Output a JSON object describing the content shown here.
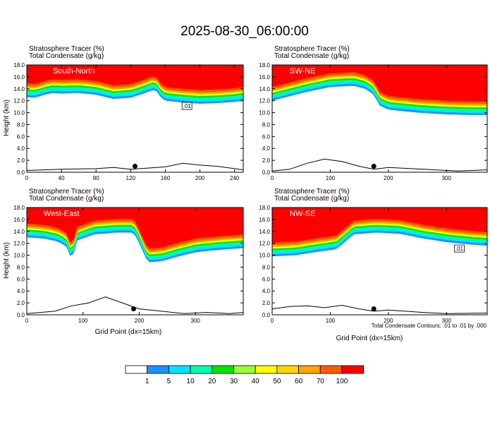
{
  "figure": {
    "title": "2025-08-30_06:00:00",
    "footnote": "Total Condensate Contours: .01 to .01 by .000",
    "contour_label": ".01",
    "xlabel": "Grid Point (dx=15km)"
  },
  "colors": {
    "levels": [
      {
        "label": "",
        "color": "#ffffff"
      },
      {
        "label": "1",
        "color": "#1e90ff"
      },
      {
        "label": "5",
        "color": "#00e5ff"
      },
      {
        "label": "10",
        "color": "#00ffaa"
      },
      {
        "label": "20",
        "color": "#00e600"
      },
      {
        "label": "30",
        "color": "#99ff33"
      },
      {
        "label": "40",
        "color": "#ffff00"
      },
      {
        "label": "50",
        "color": "#ffd700"
      },
      {
        "label": "60",
        "color": "#ffa500"
      },
      {
        "label": "70",
        "color": "#ff5a00"
      },
      {
        "label": "100",
        "color": "#ff0000"
      }
    ]
  },
  "chart_data": [
    {
      "type": "heatmap",
      "title": "South-North",
      "subtitle_1": "Stratosphere Tracer   (%)",
      "subtitle_2": "Total Condensate   (g/kg)",
      "ylabel": "Height (km)",
      "xlabel": "",
      "xlim": [
        0,
        250
      ],
      "ylim": [
        0,
        18
      ],
      "xticks": [
        0,
        40,
        80,
        120,
        160,
        200,
        240
      ],
      "yticks": [
        0,
        2,
        4,
        6,
        8,
        10,
        12,
        14,
        16,
        18
      ],
      "yticklabels": [
        "0.0",
        "2.0",
        "4.0",
        "6.0",
        "8.0",
        "10.0",
        "12.0",
        "14.0",
        "16.0",
        "18.0"
      ],
      "tracer_base": [
        [
          0,
          12.6
        ],
        [
          10,
          12.5
        ],
        [
          20,
          13.0
        ],
        [
          30,
          13.3
        ],
        [
          40,
          13.2
        ],
        [
          60,
          13.3
        ],
        [
          80,
          13.0
        ],
        [
          100,
          12.3
        ],
        [
          120,
          12.5
        ],
        [
          135,
          13.2
        ],
        [
          145,
          13.8
        ],
        [
          150,
          13.6
        ],
        [
          155,
          12.5
        ],
        [
          160,
          12.0
        ],
        [
          180,
          11.7
        ],
        [
          200,
          11.5
        ],
        [
          220,
          11.6
        ],
        [
          240,
          11.8
        ],
        [
          250,
          12.0
        ]
      ],
      "marker_x": 125,
      "terrain": [
        [
          0,
          0.3
        ],
        [
          40,
          0.5
        ],
        [
          80,
          0.6
        ],
        [
          100,
          0.8
        ],
        [
          120,
          0.5
        ],
        [
          140,
          0.7
        ],
        [
          160,
          0.9
        ],
        [
          180,
          1.5
        ],
        [
          200,
          1.2
        ],
        [
          220,
          1.0
        ],
        [
          240,
          0.6
        ],
        [
          250,
          0.4
        ]
      ]
    },
    {
      "type": "heatmap",
      "title": "SW-NE",
      "subtitle_1": "Stratosphere Tracer   (%)",
      "subtitle_2": "Total Condensate   (g/kg)",
      "ylabel": "",
      "xlabel": "",
      "xlim": [
        0,
        370
      ],
      "ylim": [
        0,
        18
      ],
      "xticks": [
        0,
        100,
        200,
        300
      ],
      "yticks": [
        0,
        2,
        4,
        6,
        8,
        10,
        12,
        14,
        16,
        18
      ],
      "yticklabels": [
        "0.0",
        "2.0",
        "4.0",
        "6.0",
        "8.0",
        "10.0",
        "12.0",
        "14.0",
        "16.0",
        "18.0"
      ],
      "tracer_base": [
        [
          0,
          12.0
        ],
        [
          20,
          12.5
        ],
        [
          60,
          13.5
        ],
        [
          100,
          14.3
        ],
        [
          140,
          14.5
        ],
        [
          160,
          14.0
        ],
        [
          175,
          13.0
        ],
        [
          185,
          11.2
        ],
        [
          200,
          10.5
        ],
        [
          250,
          10.0
        ],
        [
          300,
          9.7
        ],
        [
          340,
          9.6
        ],
        [
          370,
          9.6
        ]
      ],
      "marker_x": 175,
      "terrain": [
        [
          0,
          0.2
        ],
        [
          30,
          0.5
        ],
        [
          60,
          1.5
        ],
        [
          90,
          2.2
        ],
        [
          120,
          1.8
        ],
        [
          150,
          1.0
        ],
        [
          175,
          0.5
        ],
        [
          200,
          0.8
        ],
        [
          240,
          0.6
        ],
        [
          280,
          0.4
        ],
        [
          320,
          0.2
        ],
        [
          370,
          0.4
        ]
      ]
    },
    {
      "type": "heatmap",
      "title": "West-East",
      "subtitle_1": "Stratosphere Tracer   (%)",
      "subtitle_2": "Total Condensate   (g/kg)",
      "ylabel": "Height (km)",
      "xlabel": "Grid Point (dx=15km)",
      "xlim": [
        0,
        385
      ],
      "ylim": [
        0,
        18
      ],
      "xticks": [
        0,
        100,
        200,
        300
      ],
      "yticks": [
        0,
        2,
        4,
        6,
        8,
        10,
        12,
        14,
        16,
        18
      ],
      "yticklabels": [
        "0.0",
        "2.0",
        "4.0",
        "6.0",
        "8.0",
        "10.0",
        "12.0",
        "14.0",
        "16.0",
        "18.0"
      ],
      "tracer_base": [
        [
          0,
          13.0
        ],
        [
          30,
          12.8
        ],
        [
          55,
          12.3
        ],
        [
          70,
          11.5
        ],
        [
          80,
          9.2
        ],
        [
          90,
          12.5
        ],
        [
          120,
          13.5
        ],
        [
          160,
          13.8
        ],
        [
          190,
          13.8
        ],
        [
          200,
          12.0
        ],
        [
          215,
          8.8
        ],
        [
          240,
          9.0
        ],
        [
          270,
          9.8
        ],
        [
          300,
          10.5
        ],
        [
          330,
          10.8
        ],
        [
          385,
          11.2
        ]
      ],
      "marker_x": 190,
      "terrain": [
        [
          0,
          0.2
        ],
        [
          50,
          0.6
        ],
        [
          80,
          1.5
        ],
        [
          110,
          2.0
        ],
        [
          140,
          3.0
        ],
        [
          170,
          2.0
        ],
        [
          200,
          1.0
        ],
        [
          240,
          0.6
        ],
        [
          280,
          0.2
        ],
        [
          320,
          0.4
        ],
        [
          360,
          0.2
        ],
        [
          385,
          0.4
        ]
      ]
    },
    {
      "type": "heatmap",
      "title": "NW-SE",
      "subtitle_1": "Stratosphere Tracer   (%)",
      "subtitle_2": "Total Condensate   (g/kg)",
      "ylabel": "",
      "xlabel": "",
      "xlim": [
        0,
        370
      ],
      "ylim": [
        0,
        18
      ],
      "xticks": [
        0,
        100,
        200,
        300
      ],
      "yticks": [
        0,
        2,
        4,
        6,
        8,
        10,
        12,
        14,
        16,
        18
      ],
      "yticklabels": [
        "0.0",
        "2.0",
        "4.0",
        "6.0",
        "8.0",
        "10.0",
        "12.0",
        "14.0",
        "16.0",
        "18.0"
      ],
      "tracer_base": [
        [
          0,
          9.8
        ],
        [
          40,
          10.0
        ],
        [
          80,
          10.6
        ],
        [
          110,
          11.0
        ],
        [
          120,
          11.8
        ],
        [
          140,
          13.5
        ],
        [
          180,
          13.8
        ],
        [
          220,
          13.6
        ],
        [
          260,
          12.8
        ],
        [
          300,
          12.2
        ],
        [
          340,
          11.8
        ],
        [
          370,
          11.6
        ]
      ],
      "marker_x": 175,
      "terrain": [
        [
          0,
          1.0
        ],
        [
          30,
          1.4
        ],
        [
          60,
          1.5
        ],
        [
          90,
          1.2
        ],
        [
          120,
          1.6
        ],
        [
          150,
          1.0
        ],
        [
          175,
          0.6
        ],
        [
          200,
          0.8
        ],
        [
          230,
          0.6
        ],
        [
          260,
          0.4
        ],
        [
          300,
          0.2
        ],
        [
          370,
          0.3
        ]
      ]
    }
  ]
}
